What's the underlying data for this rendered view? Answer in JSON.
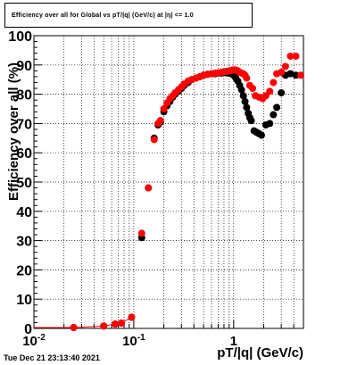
{
  "title": "Efficiency over all for Global vs pT/|q| (GeV/c) at |η| <= 1.0",
  "timestamp": "Tue Dec 21 23:13:40 2021",
  "chart_data": {
    "type": "scatter",
    "title": "Efficiency over all for Global vs pT/|q| (GeV/c) at |η| <= 1.0",
    "xlabel": "pT/|q| (GeV/c)",
    "ylabel": "Efficiency over all (%)",
    "xscale": "log",
    "xlim": [
      0.01,
      5.0
    ],
    "ylim": [
      0,
      100
    ],
    "grid": true,
    "x_ticks": [
      {
        "value": 0.01,
        "label": "10^-2"
      },
      {
        "value": 0.1,
        "label": "10^-1"
      },
      {
        "value": 1,
        "label": "1"
      }
    ],
    "y_ticks": [
      0,
      10,
      20,
      30,
      40,
      50,
      60,
      70,
      80,
      90,
      100
    ],
    "series": [
      {
        "color": "#000000",
        "points": [
          [
            0.025,
            0.3
          ],
          [
            0.05,
            0.8
          ],
          [
            0.065,
            1.5
          ],
          [
            0.075,
            1.8
          ],
          [
            0.095,
            3.8
          ],
          [
            0.12,
            31
          ],
          [
            0.14,
            48
          ],
          [
            0.16,
            65
          ],
          [
            0.175,
            69.5
          ],
          [
            0.185,
            70.5
          ],
          [
            0.2,
            74
          ],
          [
            0.215,
            76
          ],
          [
            0.23,
            77.5
          ],
          [
            0.245,
            79
          ],
          [
            0.26,
            80
          ],
          [
            0.28,
            81
          ],
          [
            0.3,
            82
          ],
          [
            0.32,
            83
          ],
          [
            0.35,
            84
          ],
          [
            0.38,
            85
          ],
          [
            0.42,
            85.5
          ],
          [
            0.46,
            86
          ],
          [
            0.5,
            86.5
          ],
          [
            0.55,
            86.8
          ],
          [
            0.6,
            87
          ],
          [
            0.65,
            87
          ],
          [
            0.7,
            87.2
          ],
          [
            0.75,
            87.2
          ],
          [
            0.8,
            87.5
          ],
          [
            0.85,
            87.3
          ],
          [
            0.9,
            87.2
          ],
          [
            0.95,
            87
          ],
          [
            1.0,
            86.5
          ],
          [
            1.05,
            85.5
          ],
          [
            1.1,
            84.5
          ],
          [
            1.15,
            83
          ],
          [
            1.2,
            81.5
          ],
          [
            1.25,
            79.5
          ],
          [
            1.3,
            77.5
          ],
          [
            1.35,
            75.5
          ],
          [
            1.4,
            73.5
          ],
          [
            1.45,
            72
          ],
          [
            1.5,
            71
          ],
          [
            1.6,
            67.5
          ],
          [
            1.7,
            67
          ],
          [
            1.8,
            66.5
          ],
          [
            1.9,
            66
          ],
          [
            2.1,
            69.5
          ],
          [
            2.3,
            70
          ],
          [
            2.5,
            73
          ],
          [
            2.7,
            75.5
          ],
          [
            3.0,
            80.5
          ],
          [
            3.3,
            86.5
          ],
          [
            3.7,
            87
          ],
          [
            4.2,
            86.5
          ]
        ]
      },
      {
        "color": "#ff0000",
        "points": [
          [
            0.025,
            0.3
          ],
          [
            0.05,
            0.8
          ],
          [
            0.065,
            1.5
          ],
          [
            0.075,
            1.8
          ],
          [
            0.095,
            3.8
          ],
          [
            0.12,
            32.5
          ],
          [
            0.14,
            48
          ],
          [
            0.16,
            64.5
          ],
          [
            0.175,
            70
          ],
          [
            0.185,
            71
          ],
          [
            0.2,
            75
          ],
          [
            0.215,
            77
          ],
          [
            0.23,
            78.5
          ],
          [
            0.245,
            79.5
          ],
          [
            0.26,
            80.5
          ],
          [
            0.28,
            81.5
          ],
          [
            0.3,
            82.5
          ],
          [
            0.32,
            83.5
          ],
          [
            0.35,
            84.5
          ],
          [
            0.38,
            85
          ],
          [
            0.42,
            85.5
          ],
          [
            0.46,
            86
          ],
          [
            0.5,
            86.5
          ],
          [
            0.55,
            86.8
          ],
          [
            0.6,
            87
          ],
          [
            0.65,
            87.2
          ],
          [
            0.7,
            87.3
          ],
          [
            0.75,
            87.5
          ],
          [
            0.8,
            87.7
          ],
          [
            0.85,
            87.8
          ],
          [
            0.9,
            88
          ],
          [
            0.95,
            88.2
          ],
          [
            1.0,
            88.3
          ],
          [
            1.05,
            88.3
          ],
          [
            1.1,
            88
          ],
          [
            1.15,
            87.5
          ],
          [
            1.2,
            87.2
          ],
          [
            1.25,
            87
          ],
          [
            1.3,
            86.5
          ],
          [
            1.35,
            85.5
          ],
          [
            1.45,
            83
          ],
          [
            1.55,
            82
          ],
          [
            1.65,
            79.5
          ],
          [
            1.8,
            79
          ],
          [
            1.95,
            78.5
          ],
          [
            2.1,
            79.5
          ],
          [
            2.3,
            81
          ],
          [
            2.5,
            84
          ],
          [
            2.7,
            87
          ],
          [
            3.0,
            87.5
          ],
          [
            3.3,
            89.5
          ],
          [
            3.7,
            93
          ],
          [
            4.2,
            93
          ],
          [
            4.7,
            86.5
          ]
        ]
      }
    ]
  }
}
